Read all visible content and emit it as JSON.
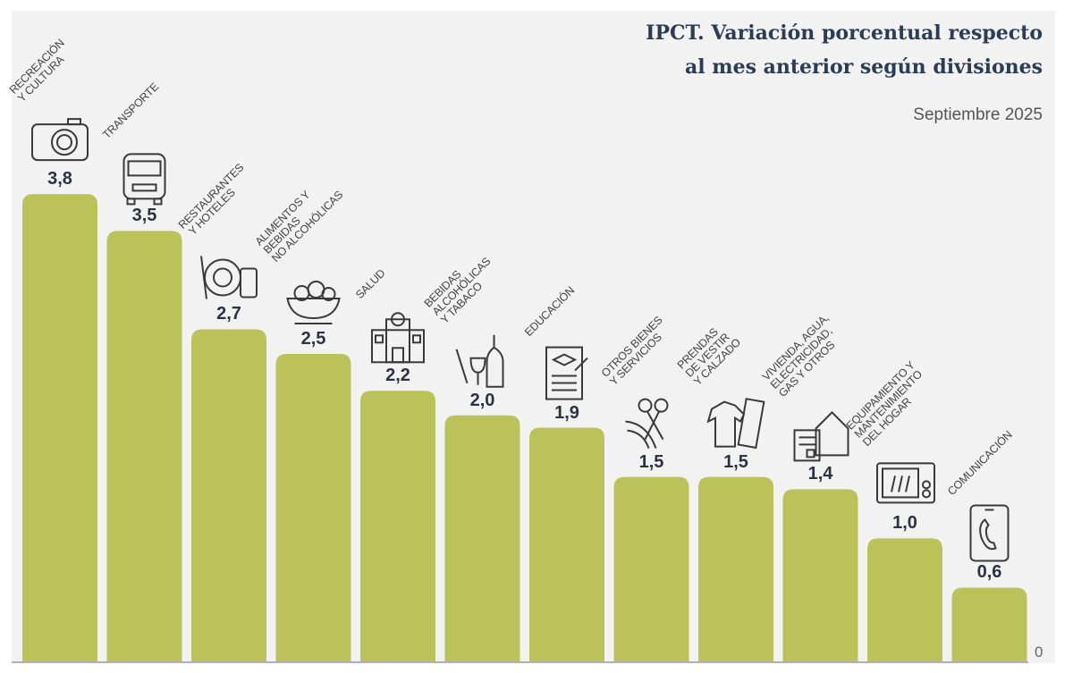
{
  "chart_data": {
    "type": "bar",
    "title": "IPCT. Variación porcentual respecto al mes anterior según divisiones",
    "title_lines": [
      "IPCT. Variación porcentual respecto",
      "al mes anterior según divisiones"
    ],
    "subtitle": "Septiembre 2025",
    "categories": [
      "RECREACIÓN\nY CULTURA",
      "TRANSPORTE",
      "RESTAURANTES\n Y HOTELES",
      "ALIMENTOS Y\nBEBIDAS\nNO ALCOHÓLICAS",
      "SALUD",
      "BEBIDAS\nALCOHÓLICAS\nY TABACO",
      "EDUCACIÓN",
      "OTROS BIENES\nY SERVICIOS",
      "PRENDAS\nDE VESTIR\nY CALZADO",
      "VIVIENDA, AGUA,\nELECTRICIDAD,\nGAS Y OTROS",
      "EQUIPAMIENTO Y\nMANTENIMIENTO\nDEL HOGAR",
      "COMUNICACIÓN"
    ],
    "values": [
      3.8,
      3.5,
      2.7,
      2.5,
      2.2,
      2.0,
      1.9,
      1.5,
      1.5,
      1.4,
      1.0,
      0.6
    ],
    "value_labels": [
      "3,8",
      "3,5",
      "2,7",
      "2,5",
      "2,2",
      "2,0",
      "1,9",
      "1,5",
      "1,5",
      "1,4",
      "1,0",
      "0,6"
    ],
    "icons": [
      "camera-icon",
      "bus-icon",
      "plate-cutlery-icon",
      "food-bowl-icon",
      "hospital-icon",
      "bottle-glass-icon",
      "diploma-icon",
      "scissors-ribbon-icon",
      "shirt-pants-icon",
      "house-document-icon",
      "microwave-icon",
      "phone-icon"
    ],
    "baseline_label": "0",
    "ylim": [
      0,
      3.8
    ],
    "grid": false,
    "legend": "none",
    "colors": {
      "bar": "#bcc25a",
      "background": "#f2f2f2",
      "title": "#2b3d55"
    }
  }
}
